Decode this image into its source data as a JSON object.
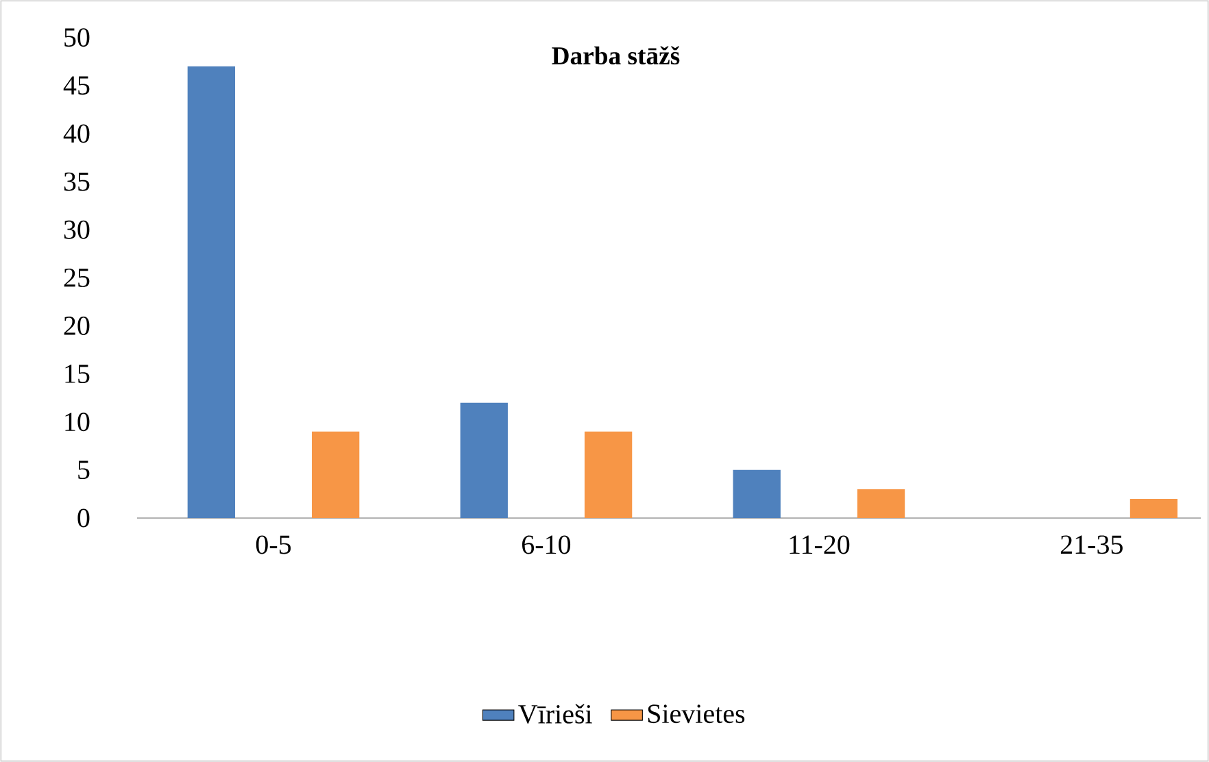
{
  "chart_data": {
    "type": "bar",
    "title": "Darba stāžš",
    "categories": [
      "0-5",
      "6-10",
      "11-20",
      "21-35"
    ],
    "series": [
      {
        "name": "Vīrieši",
        "color": "#4f81bd",
        "values": [
          47,
          12,
          5,
          0
        ]
      },
      {
        "name": "Sievietes",
        "color": "#f79646",
        "values": [
          9,
          9,
          3,
          2
        ]
      }
    ],
    "ylim": [
      0,
      50
    ],
    "yticks": [
      0,
      5,
      10,
      15,
      20,
      25,
      30,
      35,
      40,
      45,
      50
    ],
    "grid": false,
    "legend": "bottom"
  }
}
